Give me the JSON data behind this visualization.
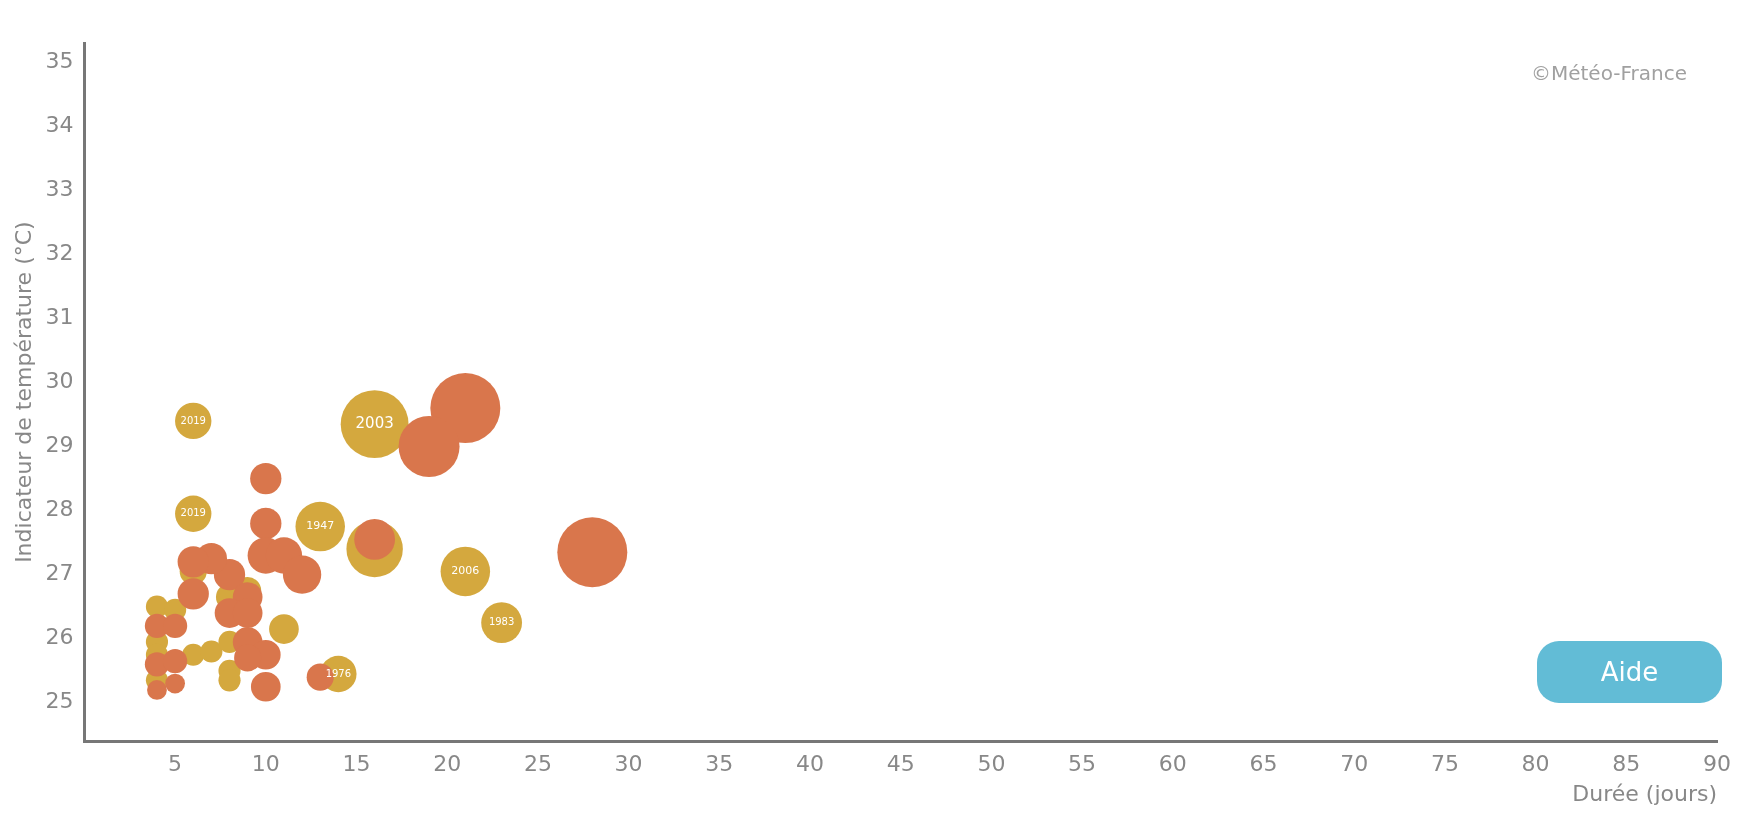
{
  "chart_data": {
    "type": "bubble",
    "xlabel": "Durée (jours)",
    "ylabel": "Indicateur de température (°C)",
    "annotations": [
      "©Météo-France",
      "Aide",
      {
        "text": "2019",
        "x": 6,
        "y": 29.4
      },
      {
        "text": "2019",
        "x": 6,
        "y": 27.95
      },
      {
        "text": "2003",
        "x": 16,
        "y": 29.35
      },
      {
        "text": "1947",
        "x": 13,
        "y": 27.75
      },
      {
        "text": "2006",
        "x": 21,
        "y": 27.05
      },
      {
        "text": "1983",
        "x": 23,
        "y": 26.25
      },
      {
        "text": "1976",
        "x": 14,
        "y": 25.45
      }
    ],
    "xlim": [
      0,
      90
    ],
    "xticks": [
      5,
      10,
      15,
      20,
      25,
      30,
      35,
      40,
      45,
      50,
      55,
      60,
      65,
      70,
      75,
      80,
      85,
      90
    ],
    "ylim": [
      24.4,
      35.3
    ],
    "yticks": [
      25,
      26,
      27,
      28,
      29,
      30,
      31,
      32,
      33,
      34,
      35
    ],
    "grid": false,
    "legend": false,
    "series": [
      {
        "color": "#d9764c",
        "x": [
          21,
          19,
          28,
          16,
          10,
          10,
          10,
          11,
          12,
          8,
          7,
          6,
          6,
          9,
          8,
          9,
          4,
          5,
          9,
          10,
          9,
          4,
          5,
          4,
          5,
          10,
          13
        ],
        "values": [
          29.6,
          29.0,
          27.35,
          27.55,
          28.5,
          27.8,
          27.3,
          27.3,
          27.0,
          27.0,
          27.25,
          27.2,
          26.7,
          26.65,
          26.4,
          26.4,
          26.2,
          26.2,
          25.95,
          25.75,
          25.7,
          25.6,
          25.65,
          25.2,
          25.3,
          25.25,
          25.4
        ],
        "sizes": [
          1,
          0.76,
          1,
          0.34,
          0.2,
          0.2,
          0.27,
          0.27,
          0.3,
          0.2,
          0.2,
          0.2,
          0.2,
          0.18,
          0.18,
          0.18,
          0.12,
          0.12,
          0.18,
          0.18,
          0.15,
          0.12,
          0.12,
          0.08,
          0.08,
          0.18,
          0.15
        ]
      },
      {
        "color": "#d4a83e",
        "x": [
          6,
          6,
          16,
          13,
          16,
          21,
          23,
          14,
          11,
          4,
          5,
          4,
          4,
          4,
          6,
          7,
          8,
          8,
          8,
          8,
          9,
          6
        ],
        "values": [
          29.4,
          27.95,
          29.35,
          27.75,
          27.4,
          27.05,
          26.25,
          25.45,
          26.15,
          26.5,
          26.45,
          25.95,
          25.75,
          25.35,
          25.75,
          25.8,
          25.95,
          25.5,
          25.35,
          26.65,
          26.75,
          27.05
        ],
        "sizes": [
          0.27,
          0.27,
          0.94,
          0.5,
          0.65,
          0.5,
          0.34,
          0.27,
          0.18,
          0.1,
          0.1,
          0.1,
          0.1,
          0.1,
          0.1,
          0.1,
          0.1,
          0.1,
          0.1,
          0.15,
          0.15,
          0.15
        ]
      }
    ]
  }
}
